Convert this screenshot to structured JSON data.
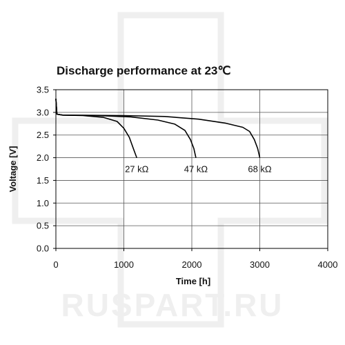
{
  "watermark": "RUSPART.RU",
  "chart_data": {
    "type": "line",
    "title": "Discharge performance at 23℃",
    "xlabel": "Time [h]",
    "ylabel": "Voltage [V]",
    "xlim": [
      0,
      4000
    ],
    "ylim": [
      0,
      3.5
    ],
    "x_ticks": [
      "0",
      "1000",
      "2000",
      "3000",
      "4000"
    ],
    "y_ticks": [
      "0.0",
      "0.5",
      "1.0",
      "1.5",
      "2.0",
      "2.5",
      "3.0",
      "3.5"
    ],
    "grid": true,
    "line_color": "#000000",
    "grid_color": "#555555",
    "series": [
      {
        "label": "27 kΩ",
        "points": [
          [
            0,
            3.3
          ],
          [
            15,
            2.96
          ],
          [
            100,
            2.94
          ],
          [
            400,
            2.93
          ],
          [
            700,
            2.89
          ],
          [
            900,
            2.8
          ],
          [
            1000,
            2.65
          ],
          [
            1080,
            2.45
          ],
          [
            1140,
            2.2
          ],
          [
            1190,
            2.0
          ]
        ]
      },
      {
        "label": "47 kΩ",
        "points": [
          [
            0,
            3.3
          ],
          [
            15,
            2.96
          ],
          [
            100,
            2.94
          ],
          [
            600,
            2.93
          ],
          [
            1100,
            2.9
          ],
          [
            1500,
            2.83
          ],
          [
            1750,
            2.74
          ],
          [
            1900,
            2.6
          ],
          [
            1980,
            2.4
          ],
          [
            2030,
            2.2
          ],
          [
            2060,
            2.0
          ]
        ]
      },
      {
        "label": "68 kΩ",
        "points": [
          [
            0,
            3.3
          ],
          [
            15,
            2.96
          ],
          [
            100,
            2.94
          ],
          [
            1000,
            2.93
          ],
          [
            1600,
            2.91
          ],
          [
            2100,
            2.85
          ],
          [
            2500,
            2.76
          ],
          [
            2750,
            2.67
          ],
          [
            2850,
            2.58
          ],
          [
            2920,
            2.4
          ],
          [
            2970,
            2.2
          ],
          [
            3000,
            2.0
          ]
        ]
      }
    ]
  }
}
